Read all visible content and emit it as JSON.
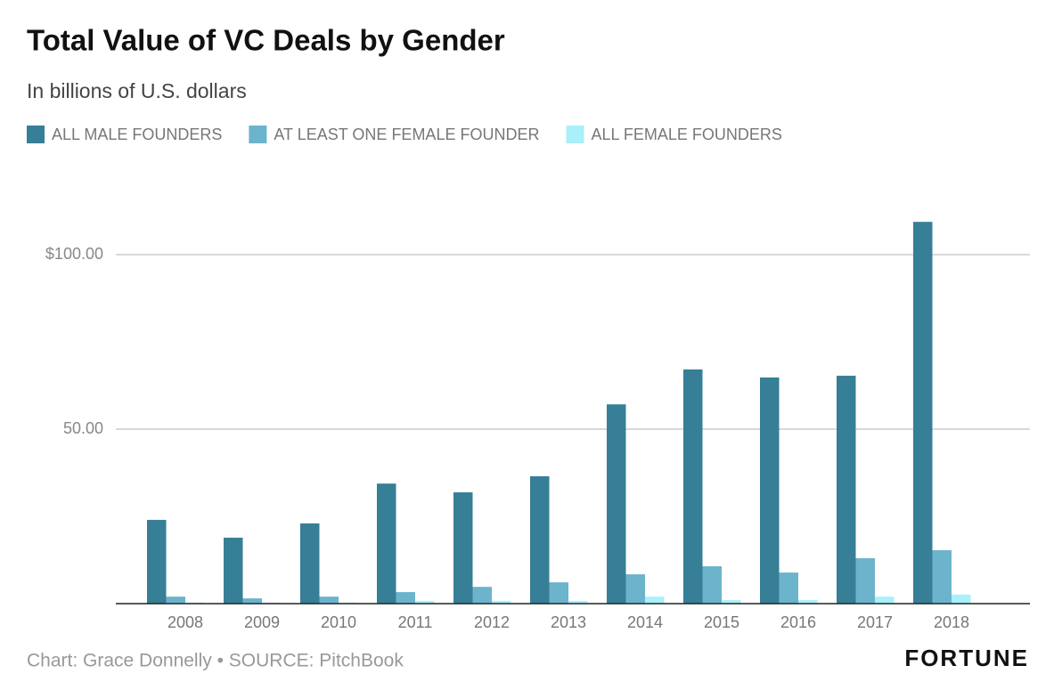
{
  "chart_data": {
    "type": "bar",
    "title": "Total Value of VC Deals by Gender",
    "subtitle": "In billions of U.S. dollars",
    "categories": [
      "2008",
      "2009",
      "2010",
      "2011",
      "2012",
      "2013",
      "2014",
      "2015",
      "2016",
      "2017",
      "2018"
    ],
    "series": [
      {
        "name": "ALL MALE FOUNDERS",
        "color": "#367f96",
        "values": [
          24.0,
          18.9,
          23.0,
          34.4,
          31.9,
          36.5,
          57.1,
          67.1,
          64.8,
          65.3,
          109.4
        ]
      },
      {
        "name": "AT LEAST ONE FEMALE FOUNDER",
        "color": "#6cb3cc",
        "values": [
          2.0,
          1.5,
          2.0,
          3.3,
          4.8,
          6.1,
          8.4,
          10.7,
          8.9,
          13.0,
          15.3
        ]
      },
      {
        "name": "ALL FEMALE FOUNDERS",
        "color": "#a9f0fb",
        "values": [
          0.3,
          0.3,
          0.3,
          0.8,
          0.8,
          0.8,
          2.0,
          1.0,
          1.0,
          2.0,
          2.6
        ]
      }
    ],
    "ylim": [
      0,
      112
    ],
    "yticks": [
      {
        "value": 50,
        "label": "50.00"
      },
      {
        "value": 100,
        "label": "$100.00"
      }
    ],
    "grid": true,
    "legend": "top",
    "source": "Chart: Grace Donnelly • SOURCE: PitchBook",
    "brand": "FORTUNE"
  }
}
